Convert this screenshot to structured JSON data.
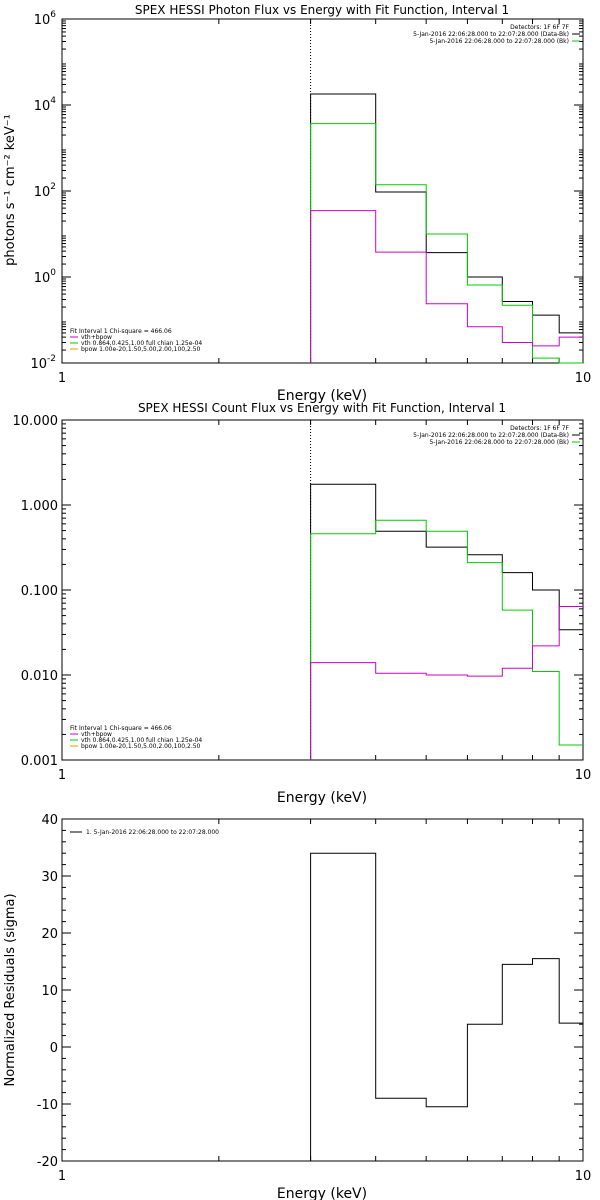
{
  "chart_data": [
    {
      "type": "line",
      "title": "SPEX HESSI Photon Flux vs Energy with Fit Function, Interval 1",
      "xlabel": "Energy (keV)",
      "ylabel": "photons s⁻¹ cm⁻² keV⁻¹",
      "xscale": "log",
      "yscale": "log",
      "xlim": [
        1,
        10
      ],
      "ylim": [
        0.01,
        1000000
      ],
      "xticks": [
        "1",
        "10"
      ],
      "yticks": [
        {
          "base": "10",
          "exp": "-2",
          "value": 0.01
        },
        {
          "base": "10",
          "exp": "0",
          "value": 1
        },
        {
          "base": "10",
          "exp": "2",
          "value": 100
        },
        {
          "base": "10",
          "exp": "4",
          "value": 10000
        },
        {
          "base": "10",
          "exp": "6",
          "value": 1000000
        }
      ],
      "vline_x": 3,
      "info_lines": [
        "Detectors: 1F 6F 7F",
        "5-Jan-2016 22:06:28.000 to 22:07:28.000 (Data-Bk)",
        "5-Jan-2016 22:06:28.000 to 22:07:28.000 (Bk)"
      ],
      "legend_lines": [
        "Fit Interval 1    Chi-square = 466.06",
        "vth+bpow",
        "vth 0.864,0.425,1.00  full chian 1.25e-04",
        "bpow 1.00e-20,1.50,5.00,2.00,100,2.50"
      ],
      "series": [
        {
          "color": "#000000",
          "edges": [
            3,
            4,
            5,
            6,
            7,
            8,
            9,
            10
          ],
          "values": [
            18000,
            95,
            3.7,
            1.0,
            0.27,
            0.13,
            0.05
          ]
        },
        {
          "color": "#00cc00",
          "edges": [
            3,
            4,
            5,
            6,
            7,
            8,
            9,
            10
          ],
          "values": [
            3700,
            140,
            10,
            0.65,
            0.22,
            0.013,
            0.006
          ]
        },
        {
          "color": "#cc00cc",
          "edges": [
            3,
            4,
            5,
            6,
            7,
            8,
            9,
            10
          ],
          "values": [
            35,
            3.8,
            0.24,
            0.07,
            0.03,
            0.025,
            0.04
          ]
        }
      ]
    },
    {
      "type": "line",
      "title": "SPEX HESSI Count Flux vs Energy with Fit Function, Interval 1",
      "xlabel": "Energy (keV)",
      "ylabel": "",
      "xscale": "log",
      "yscale": "log",
      "xlim": [
        1,
        10
      ],
      "ylim": [
        0.001,
        10
      ],
      "xticks": [
        "1",
        "10"
      ],
      "yticks": [
        {
          "label": "0.001",
          "value": 0.001
        },
        {
          "label": "0.010",
          "value": 0.01
        },
        {
          "label": "0.100",
          "value": 0.1
        },
        {
          "label": "1.000",
          "value": 1
        },
        {
          "label": "10.000",
          "value": 10
        }
      ],
      "vline_x": 3,
      "info_lines": [
        "Detectors: 1F 6F 7F",
        "5-Jan-2016 22:06:28.000 to 22:07:28.000 (Data-Bk)",
        "5-Jan-2016 22:06:28.000 to 22:07:28.000 (Bk)"
      ],
      "legend_lines": [
        "Fit Interval 1    Chi-square = 466.06",
        "vth+bpow",
        "vth 0.864,0.425,1.00  full chian 1.25e-04",
        "bpow 1.00e-20,1.50,5.00,2.00,100,2.50"
      ],
      "series": [
        {
          "color": "#000000",
          "edges": [
            3,
            4,
            5,
            6,
            7,
            8,
            9,
            10
          ],
          "values": [
            1.75,
            0.49,
            0.32,
            0.26,
            0.16,
            0.1,
            0.034
          ]
        },
        {
          "color": "#00cc00",
          "edges": [
            3,
            4,
            5,
            6,
            7,
            8,
            9,
            10
          ],
          "values": [
            0.46,
            0.66,
            0.49,
            0.21,
            0.058,
            0.011,
            0.0015
          ]
        },
        {
          "color": "#cc00cc",
          "edges": [
            3,
            4,
            5,
            6,
            7,
            8,
            9,
            10
          ],
          "values": [
            0.014,
            0.0105,
            0.01,
            0.0097,
            0.012,
            0.022,
            0.064
          ]
        }
      ]
    },
    {
      "type": "line",
      "title": "",
      "xlabel": "Energy (keV)",
      "ylabel": "Normalized Residuals (sigma)",
      "xscale": "log",
      "yscale": "linear",
      "xlim": [
        1,
        10
      ],
      "ylim": [
        -20,
        40
      ],
      "xticks": [
        "1",
        "10"
      ],
      "yticks": [
        {
          "label": "-20",
          "value": -20
        },
        {
          "label": "-10",
          "value": -10
        },
        {
          "label": "0",
          "value": 0
        },
        {
          "label": "10",
          "value": 10
        },
        {
          "label": "20",
          "value": 20
        },
        {
          "label": "30",
          "value": 30
        },
        {
          "label": "40",
          "value": 40
        }
      ],
      "legend_lines": [
        "1.  5-Jan-2016 22:06:28.000 to 22:07:28.000"
      ],
      "series": [
        {
          "color": "#000000",
          "edges": [
            3,
            4,
            5,
            6,
            7,
            8,
            9,
            10
          ],
          "values": [
            34,
            -9,
            -10.5,
            4,
            14.5,
            15.5,
            4.2
          ]
        }
      ]
    }
  ]
}
